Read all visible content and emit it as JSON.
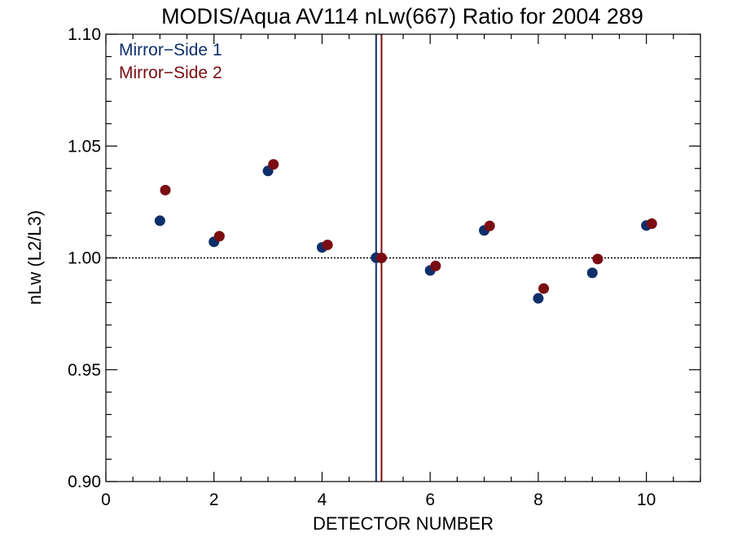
{
  "chart_data": {
    "type": "scatter",
    "title": "MODIS/Aqua AV114 nLw(667) Ratio for 2004 289",
    "xlabel": "DETECTOR NUMBER",
    "ylabel": "nLw (L2/L3)",
    "xlim": [
      0,
      11
    ],
    "ylim": [
      0.9,
      1.1
    ],
    "x_ticks": [
      0,
      2,
      4,
      6,
      8,
      10
    ],
    "x_tick_labels": [
      "0",
      "2",
      "4",
      "6",
      "8",
      "10"
    ],
    "x_minor_step": 0.5,
    "y_ticks": [
      0.9,
      0.95,
      1.0,
      1.05,
      1.1
    ],
    "y_tick_labels": [
      "0.90",
      "0.95",
      "1.00",
      "1.05",
      "1.10"
    ],
    "y_minor_step": 0.01,
    "reference_line_y": 1.0,
    "legend_position": "top-left",
    "grid": false,
    "series": [
      {
        "name": "Mirror−Side 1",
        "color": "#0e2f6a",
        "x": [
          1,
          2,
          3,
          4,
          5,
          6,
          7,
          8,
          9,
          10
        ],
        "y": [
          1.0166,
          1.0072,
          1.0389,
          1.0047,
          1.0001,
          0.9944,
          1.0123,
          0.9819,
          0.9933,
          1.0145
        ],
        "vertical_line_x": 5.0
      },
      {
        "name": "Mirror−Side 2",
        "color": "#7a0c12",
        "x": [
          1.1,
          2.1,
          3.1,
          4.1,
          5.1,
          6.1,
          7.1,
          8.1,
          9.1,
          10.1
        ],
        "y": [
          1.0303,
          1.0097,
          1.0418,
          1.0058,
          1.0,
          0.9964,
          1.0143,
          0.9863,
          0.9995,
          1.0153
        ],
        "vertical_line_x": 5.1
      }
    ]
  }
}
